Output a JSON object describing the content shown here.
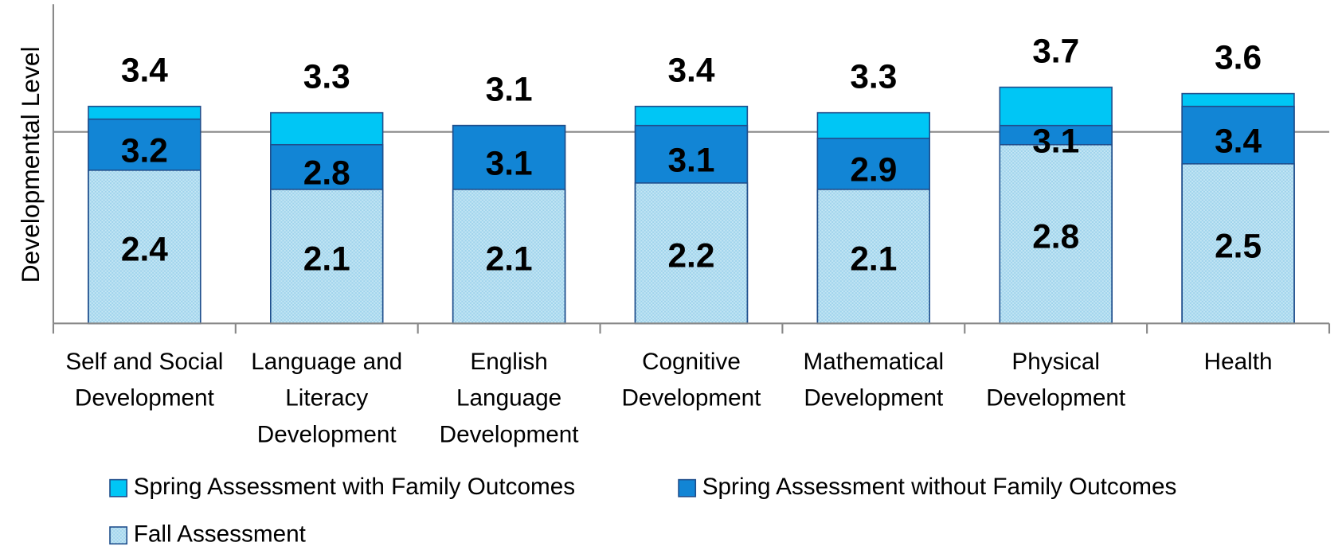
{
  "chart_data": {
    "type": "overlapped_bar",
    "y_label": "Developmental Level",
    "categories": [
      [
        "Self and Social",
        "Development"
      ],
      [
        "Language and",
        "Literacy",
        "Development"
      ],
      [
        "English",
        "Language",
        "Development"
      ],
      [
        "Cognitive",
        "Development"
      ],
      [
        "Mathematical",
        "Development"
      ],
      [
        "Physical",
        "Development"
      ],
      [
        "Health"
      ]
    ],
    "series": [
      {
        "name": "Spring Assessment with Family Outcomes",
        "color": "#00c6f5",
        "values": [
          3.4,
          3.3,
          3.1,
          3.4,
          3.3,
          3.7,
          3.6
        ]
      },
      {
        "name": "Spring Assessment without Family Outcomes",
        "color": "#1285d5",
        "values": [
          3.2,
          2.8,
          3.1,
          3.1,
          2.9,
          3.1,
          3.4
        ]
      },
      {
        "name": "Fall Assessment",
        "color": "#c4e6f4",
        "values": [
          2.4,
          2.1,
          2.1,
          2.2,
          2.1,
          2.8,
          2.5
        ]
      }
    ],
    "ylim": [
      0,
      5
    ],
    "yticks": [
      3
    ],
    "grid": true
  }
}
